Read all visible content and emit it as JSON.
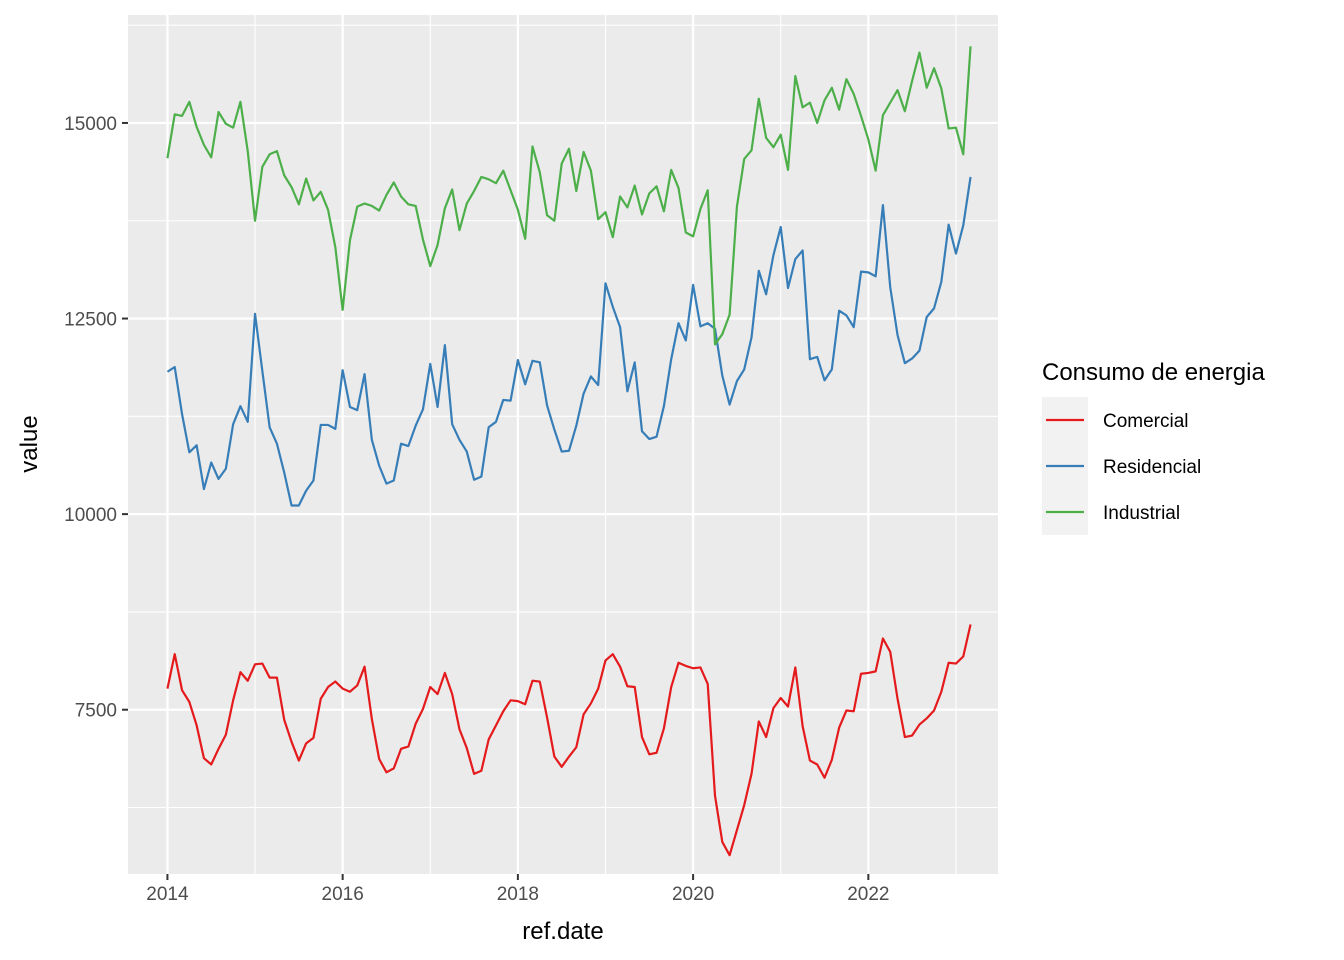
{
  "chart_data": {
    "type": "line",
    "xlabel": "ref.date",
    "ylabel": "value",
    "xlim": [
      2013.55,
      2023.48
    ],
    "ylim": [
      5400,
      16380
    ],
    "x_ticks": [
      2014,
      2016,
      2018,
      2020,
      2022
    ],
    "y_ticks": [
      7500,
      10000,
      12500,
      15000
    ],
    "y_tick_labels": [
      "7500",
      "10000",
      "12500",
      "15000"
    ],
    "x_tick_labels": [
      "2014",
      "2016",
      "2018",
      "2020",
      "2022"
    ],
    "grid": true,
    "legend": {
      "title": "Consumo de energia",
      "position": "right"
    },
    "x_start": "2014-01",
    "x_step": "1 month",
    "series": [
      {
        "name": "Comercial",
        "color": "#e41a1c",
        "values": [
          7770,
          8210,
          7750,
          7600,
          7300,
          6880,
          6800,
          7000,
          7180,
          7620,
          7980,
          7870,
          8080,
          8090,
          7910,
          7910,
          7370,
          7090,
          6850,
          7070,
          7140,
          7640,
          7790,
          7860,
          7770,
          7730,
          7810,
          8050,
          7380,
          6870,
          6700,
          6750,
          7000,
          7030,
          7320,
          7510,
          7790,
          7700,
          7970,
          7700,
          7250,
          7010,
          6680,
          6720,
          7120,
          7300,
          7480,
          7620,
          7610,
          7570,
          7870,
          7860,
          7400,
          6900,
          6770,
          6900,
          7020,
          7440,
          7580,
          7770,
          8130,
          8210,
          8050,
          7800,
          7790,
          7150,
          6930,
          6950,
          7260,
          7790,
          8100,
          8060,
          8030,
          8040,
          7830,
          6400,
          5810,
          5640,
          5960,
          6280,
          6680,
          7350,
          7150,
          7520,
          7650,
          7540,
          8040,
          7290,
          6850,
          6800,
          6630,
          6860,
          7270,
          7490,
          7480,
          7960,
          7970,
          7990,
          8410,
          8240,
          7640,
          7150,
          7170,
          7310,
          7390,
          7490,
          7730,
          8100,
          8090,
          8180,
          8590
        ]
      },
      {
        "name": "Residencial",
        "color": "#377eb8",
        "values": [
          11820,
          11880,
          11280,
          10790,
          10880,
          10320,
          10660,
          10450,
          10580,
          11150,
          11380,
          11180,
          12560,
          11830,
          11110,
          10900,
          10530,
          10110,
          10110,
          10300,
          10430,
          11140,
          11140,
          11090,
          11840,
          11370,
          11330,
          11790,
          10950,
          10620,
          10390,
          10430,
          10900,
          10870,
          11130,
          11340,
          11920,
          11370,
          12160,
          11150,
          10950,
          10800,
          10440,
          10480,
          11110,
          11180,
          11460,
          11450,
          11970,
          11660,
          11960,
          11940,
          11390,
          11080,
          10800,
          10810,
          11130,
          11540,
          11760,
          11650,
          12950,
          12650,
          12390,
          11570,
          11940,
          11060,
          10960,
          10990,
          11380,
          11980,
          12440,
          12220,
          12930,
          12400,
          12440,
          12370,
          11770,
          11400,
          11700,
          11850,
          12260,
          13110,
          12810,
          13310,
          13670,
          12890,
          13260,
          13370,
          11980,
          12010,
          11710,
          11850,
          12600,
          12540,
          12390,
          13100,
          13090,
          13040,
          13950,
          12900,
          12290,
          11930,
          11990,
          12090,
          12520,
          12630,
          12970,
          13700,
          13330,
          13690,
          14310
        ]
      },
      {
        "name": "Industrial",
        "color": "#4daf4a",
        "values": [
          14550,
          15110,
          15090,
          15270,
          14950,
          14720,
          14560,
          15140,
          14990,
          14940,
          15270,
          14640,
          13750,
          14440,
          14600,
          14640,
          14330,
          14180,
          13960,
          14290,
          14010,
          14120,
          13890,
          13410,
          12610,
          13500,
          13930,
          13970,
          13940,
          13880,
          14080,
          14240,
          14060,
          13960,
          13940,
          13510,
          13170,
          13440,
          13910,
          14150,
          13630,
          13970,
          14130,
          14310,
          14280,
          14230,
          14390,
          14140,
          13890,
          13520,
          14700,
          14370,
          13820,
          13750,
          14480,
          14670,
          14130,
          14630,
          14390,
          13770,
          13860,
          13540,
          14060,
          13920,
          14200,
          13830,
          14100,
          14190,
          13870,
          14400,
          14170,
          13600,
          13550,
          13900,
          14140,
          12170,
          12300,
          12550,
          13930,
          14540,
          14650,
          15310,
          14810,
          14690,
          14850,
          14400,
          15600,
          15200,
          15260,
          15000,
          15290,
          15450,
          15170,
          15560,
          15370,
          15090,
          14790,
          14390,
          15100,
          15260,
          15420,
          15150,
          15540,
          15900,
          15450,
          15700,
          15440,
          14930,
          14940,
          14600,
          15980
        ]
      }
    ]
  }
}
